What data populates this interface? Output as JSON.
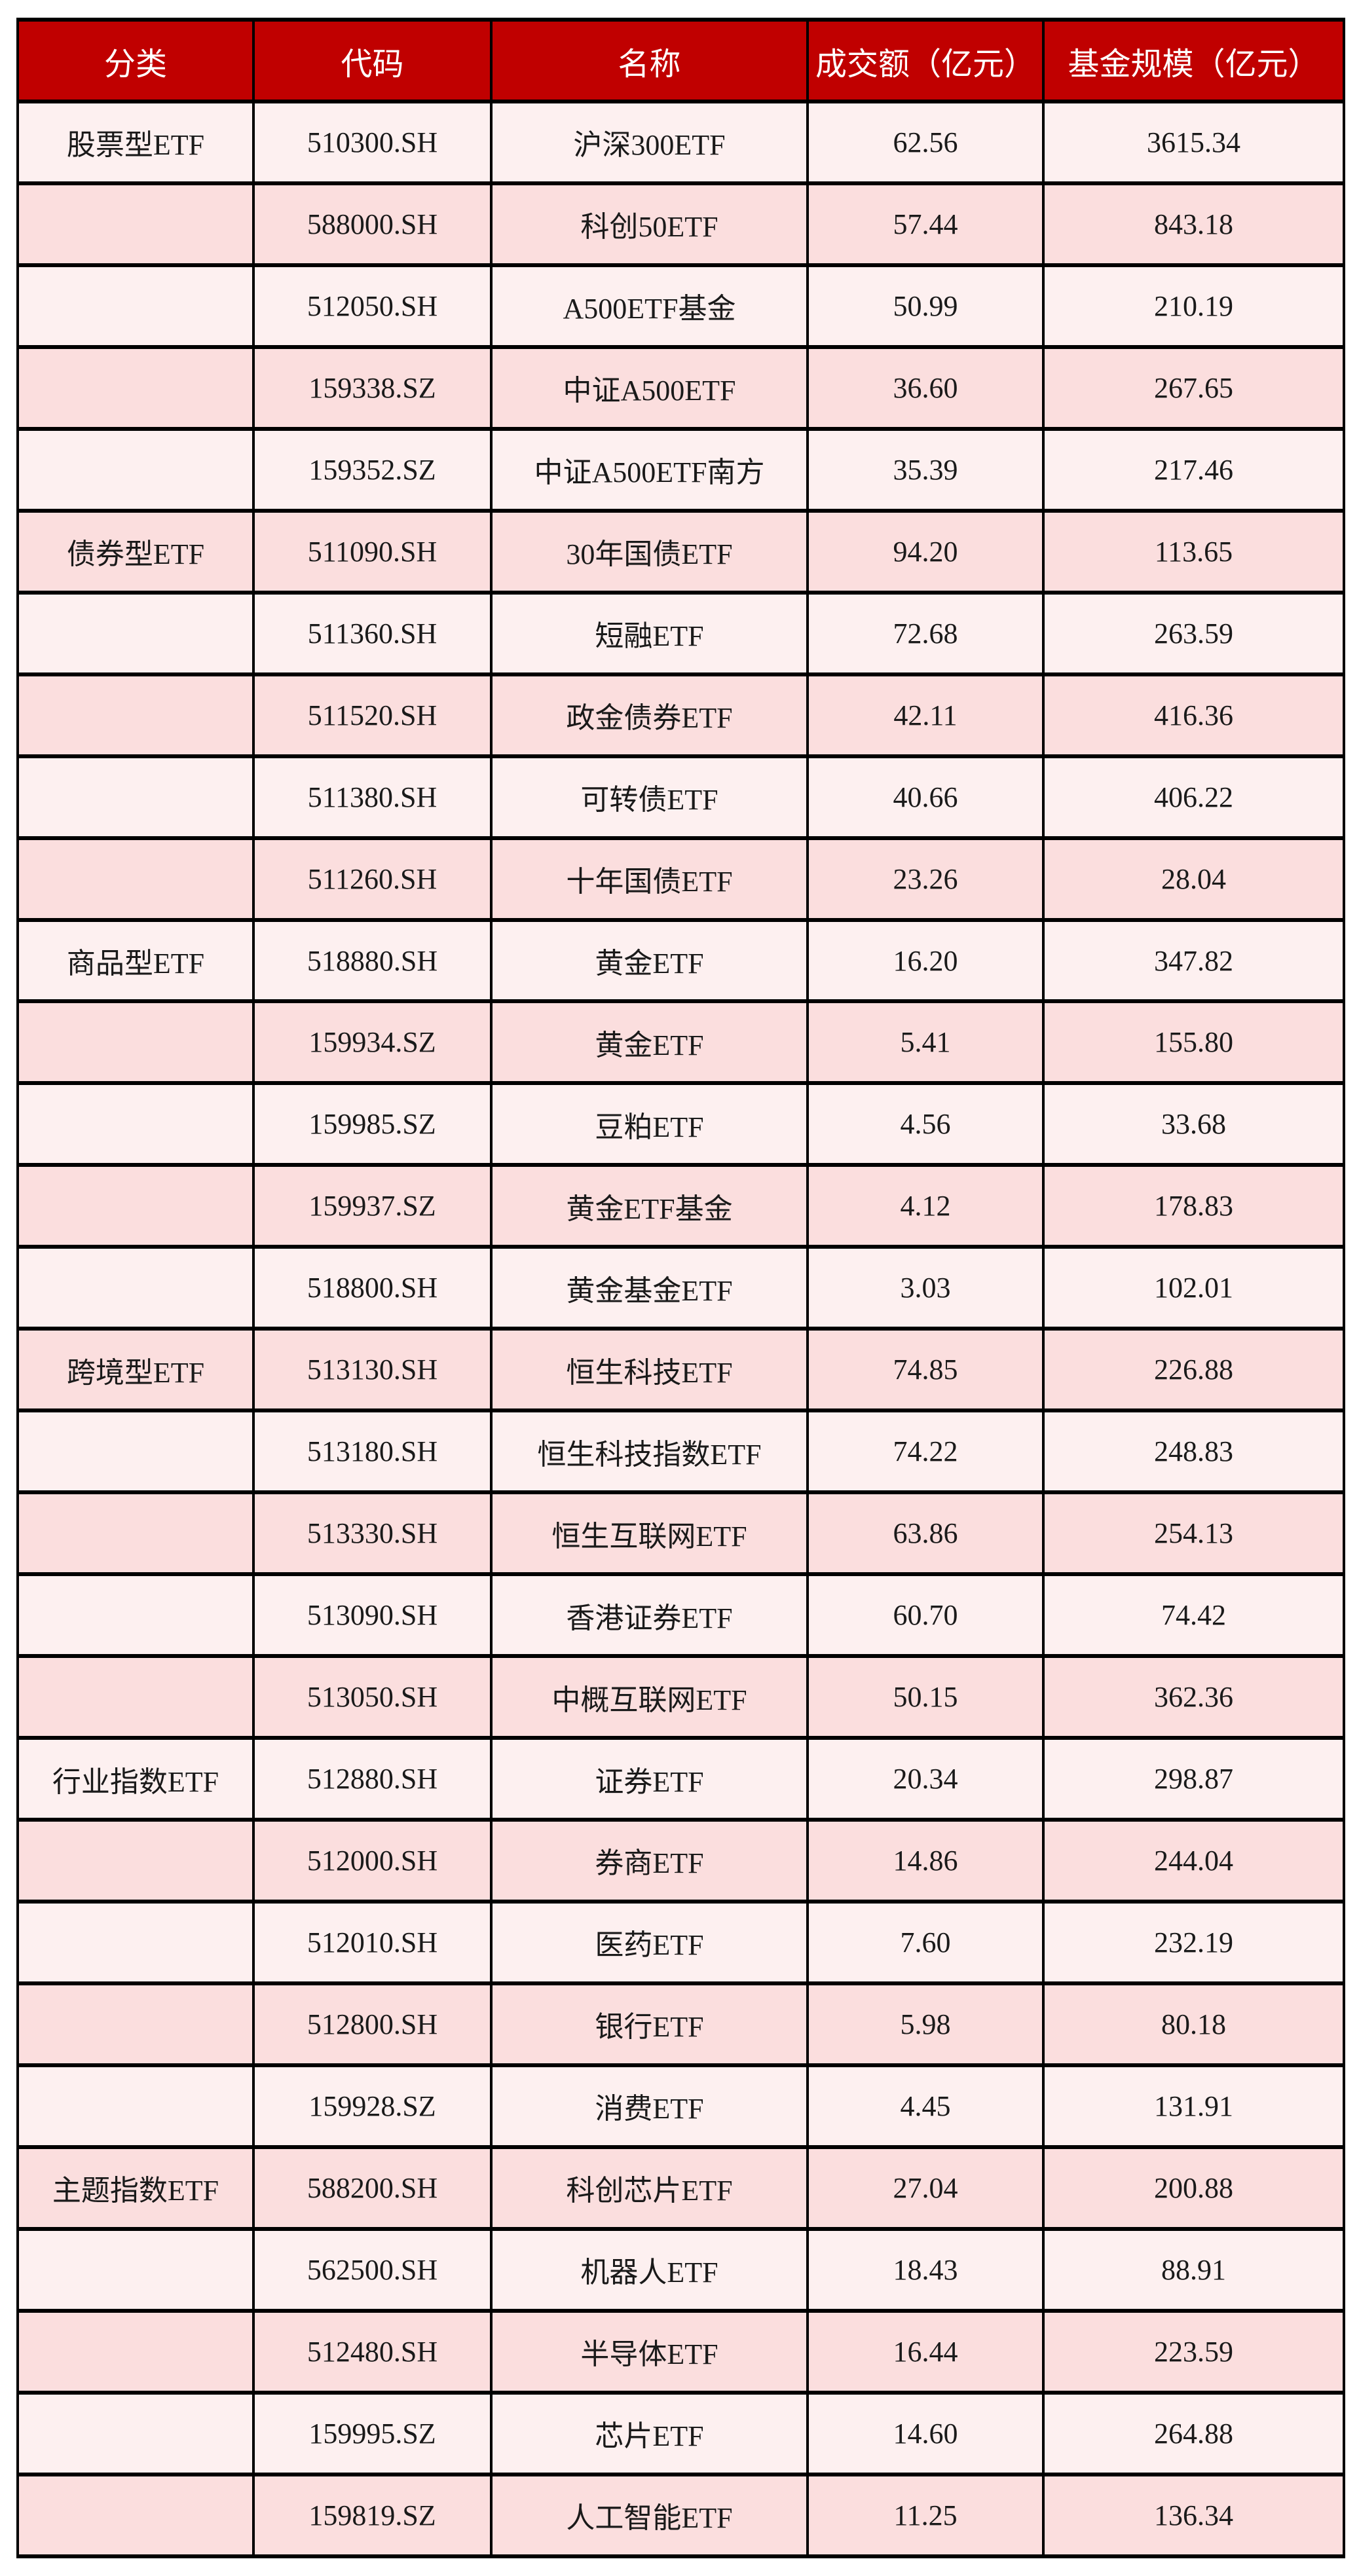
{
  "chart_data": {
    "type": "table",
    "columns": [
      "分类",
      "代码",
      "名称",
      "成交额（亿元）",
      "基金规模（亿元）"
    ],
    "rows": [
      {
        "category": "股票型ETF",
        "code": "510300.SH",
        "name": "沪深300ETF",
        "turnover": "62.56",
        "scale": "3615.34"
      },
      {
        "category": "",
        "code": "588000.SH",
        "name": "科创50ETF",
        "turnover": "57.44",
        "scale": "843.18"
      },
      {
        "category": "",
        "code": "512050.SH",
        "name": "A500ETF基金",
        "turnover": "50.99",
        "scale": "210.19"
      },
      {
        "category": "",
        "code": "159338.SZ",
        "name": "中证A500ETF",
        "turnover": "36.60",
        "scale": "267.65"
      },
      {
        "category": "",
        "code": "159352.SZ",
        "name": "中证A500ETF南方",
        "turnover": "35.39",
        "scale": "217.46"
      },
      {
        "category": "债券型ETF",
        "code": "511090.SH",
        "name": "30年国债ETF",
        "turnover": "94.20",
        "scale": "113.65"
      },
      {
        "category": "",
        "code": "511360.SH",
        "name": "短融ETF",
        "turnover": "72.68",
        "scale": "263.59"
      },
      {
        "category": "",
        "code": "511520.SH",
        "name": "政金债券ETF",
        "turnover": "42.11",
        "scale": "416.36"
      },
      {
        "category": "",
        "code": "511380.SH",
        "name": "可转债ETF",
        "turnover": "40.66",
        "scale": "406.22"
      },
      {
        "category": "",
        "code": "511260.SH",
        "name": "十年国债ETF",
        "turnover": "23.26",
        "scale": "28.04"
      },
      {
        "category": "商品型ETF",
        "code": "518880.SH",
        "name": "黄金ETF",
        "turnover": "16.20",
        "scale": "347.82"
      },
      {
        "category": "",
        "code": "159934.SZ",
        "name": "黄金ETF",
        "turnover": "5.41",
        "scale": "155.80"
      },
      {
        "category": "",
        "code": "159985.SZ",
        "name": "豆粕ETF",
        "turnover": "4.56",
        "scale": "33.68"
      },
      {
        "category": "",
        "code": "159937.SZ",
        "name": "黄金ETF基金",
        "turnover": "4.12",
        "scale": "178.83"
      },
      {
        "category": "",
        "code": "518800.SH",
        "name": "黄金基金ETF",
        "turnover": "3.03",
        "scale": "102.01"
      },
      {
        "category": "跨境型ETF",
        "code": "513130.SH",
        "name": "恒生科技ETF",
        "turnover": "74.85",
        "scale": "226.88"
      },
      {
        "category": "",
        "code": "513180.SH",
        "name": "恒生科技指数ETF",
        "turnover": "74.22",
        "scale": "248.83"
      },
      {
        "category": "",
        "code": "513330.SH",
        "name": "恒生互联网ETF",
        "turnover": "63.86",
        "scale": "254.13"
      },
      {
        "category": "",
        "code": "513090.SH",
        "name": "香港证券ETF",
        "turnover": "60.70",
        "scale": "74.42"
      },
      {
        "category": "",
        "code": "513050.SH",
        "name": "中概互联网ETF",
        "turnover": "50.15",
        "scale": "362.36"
      },
      {
        "category": "行业指数ETF",
        "code": "512880.SH",
        "name": "证券ETF",
        "turnover": "20.34",
        "scale": "298.87"
      },
      {
        "category": "",
        "code": "512000.SH",
        "name": "券商ETF",
        "turnover": "14.86",
        "scale": "244.04"
      },
      {
        "category": "",
        "code": "512010.SH",
        "name": "医药ETF",
        "turnover": "7.60",
        "scale": "232.19"
      },
      {
        "category": "",
        "code": "512800.SH",
        "name": "银行ETF",
        "turnover": "5.98",
        "scale": "80.18"
      },
      {
        "category": "",
        "code": "159928.SZ",
        "name": "消费ETF",
        "turnover": "4.45",
        "scale": "131.91"
      },
      {
        "category": "主题指数ETF",
        "code": "588200.SH",
        "name": "科创芯片ETF",
        "turnover": "27.04",
        "scale": "200.88"
      },
      {
        "category": "",
        "code": "562500.SH",
        "name": "机器人ETF",
        "turnover": "18.43",
        "scale": "88.91"
      },
      {
        "category": "",
        "code": "512480.SH",
        "name": "半导体ETF",
        "turnover": "16.44",
        "scale": "223.59"
      },
      {
        "category": "",
        "code": "159995.SZ",
        "name": "芯片ETF",
        "turnover": "14.60",
        "scale": "264.88"
      },
      {
        "category": "",
        "code": "159819.SZ",
        "name": "人工智能ETF",
        "turnover": "11.25",
        "scale": "136.34"
      }
    ]
  },
  "colors": {
    "header_bg": "#C00000",
    "header_text": "#FFFFFF",
    "row_light": "#FDF0F0",
    "row_dark": "#FBDEDE",
    "border": "#000000",
    "cell_text": "#1A1A1A"
  }
}
